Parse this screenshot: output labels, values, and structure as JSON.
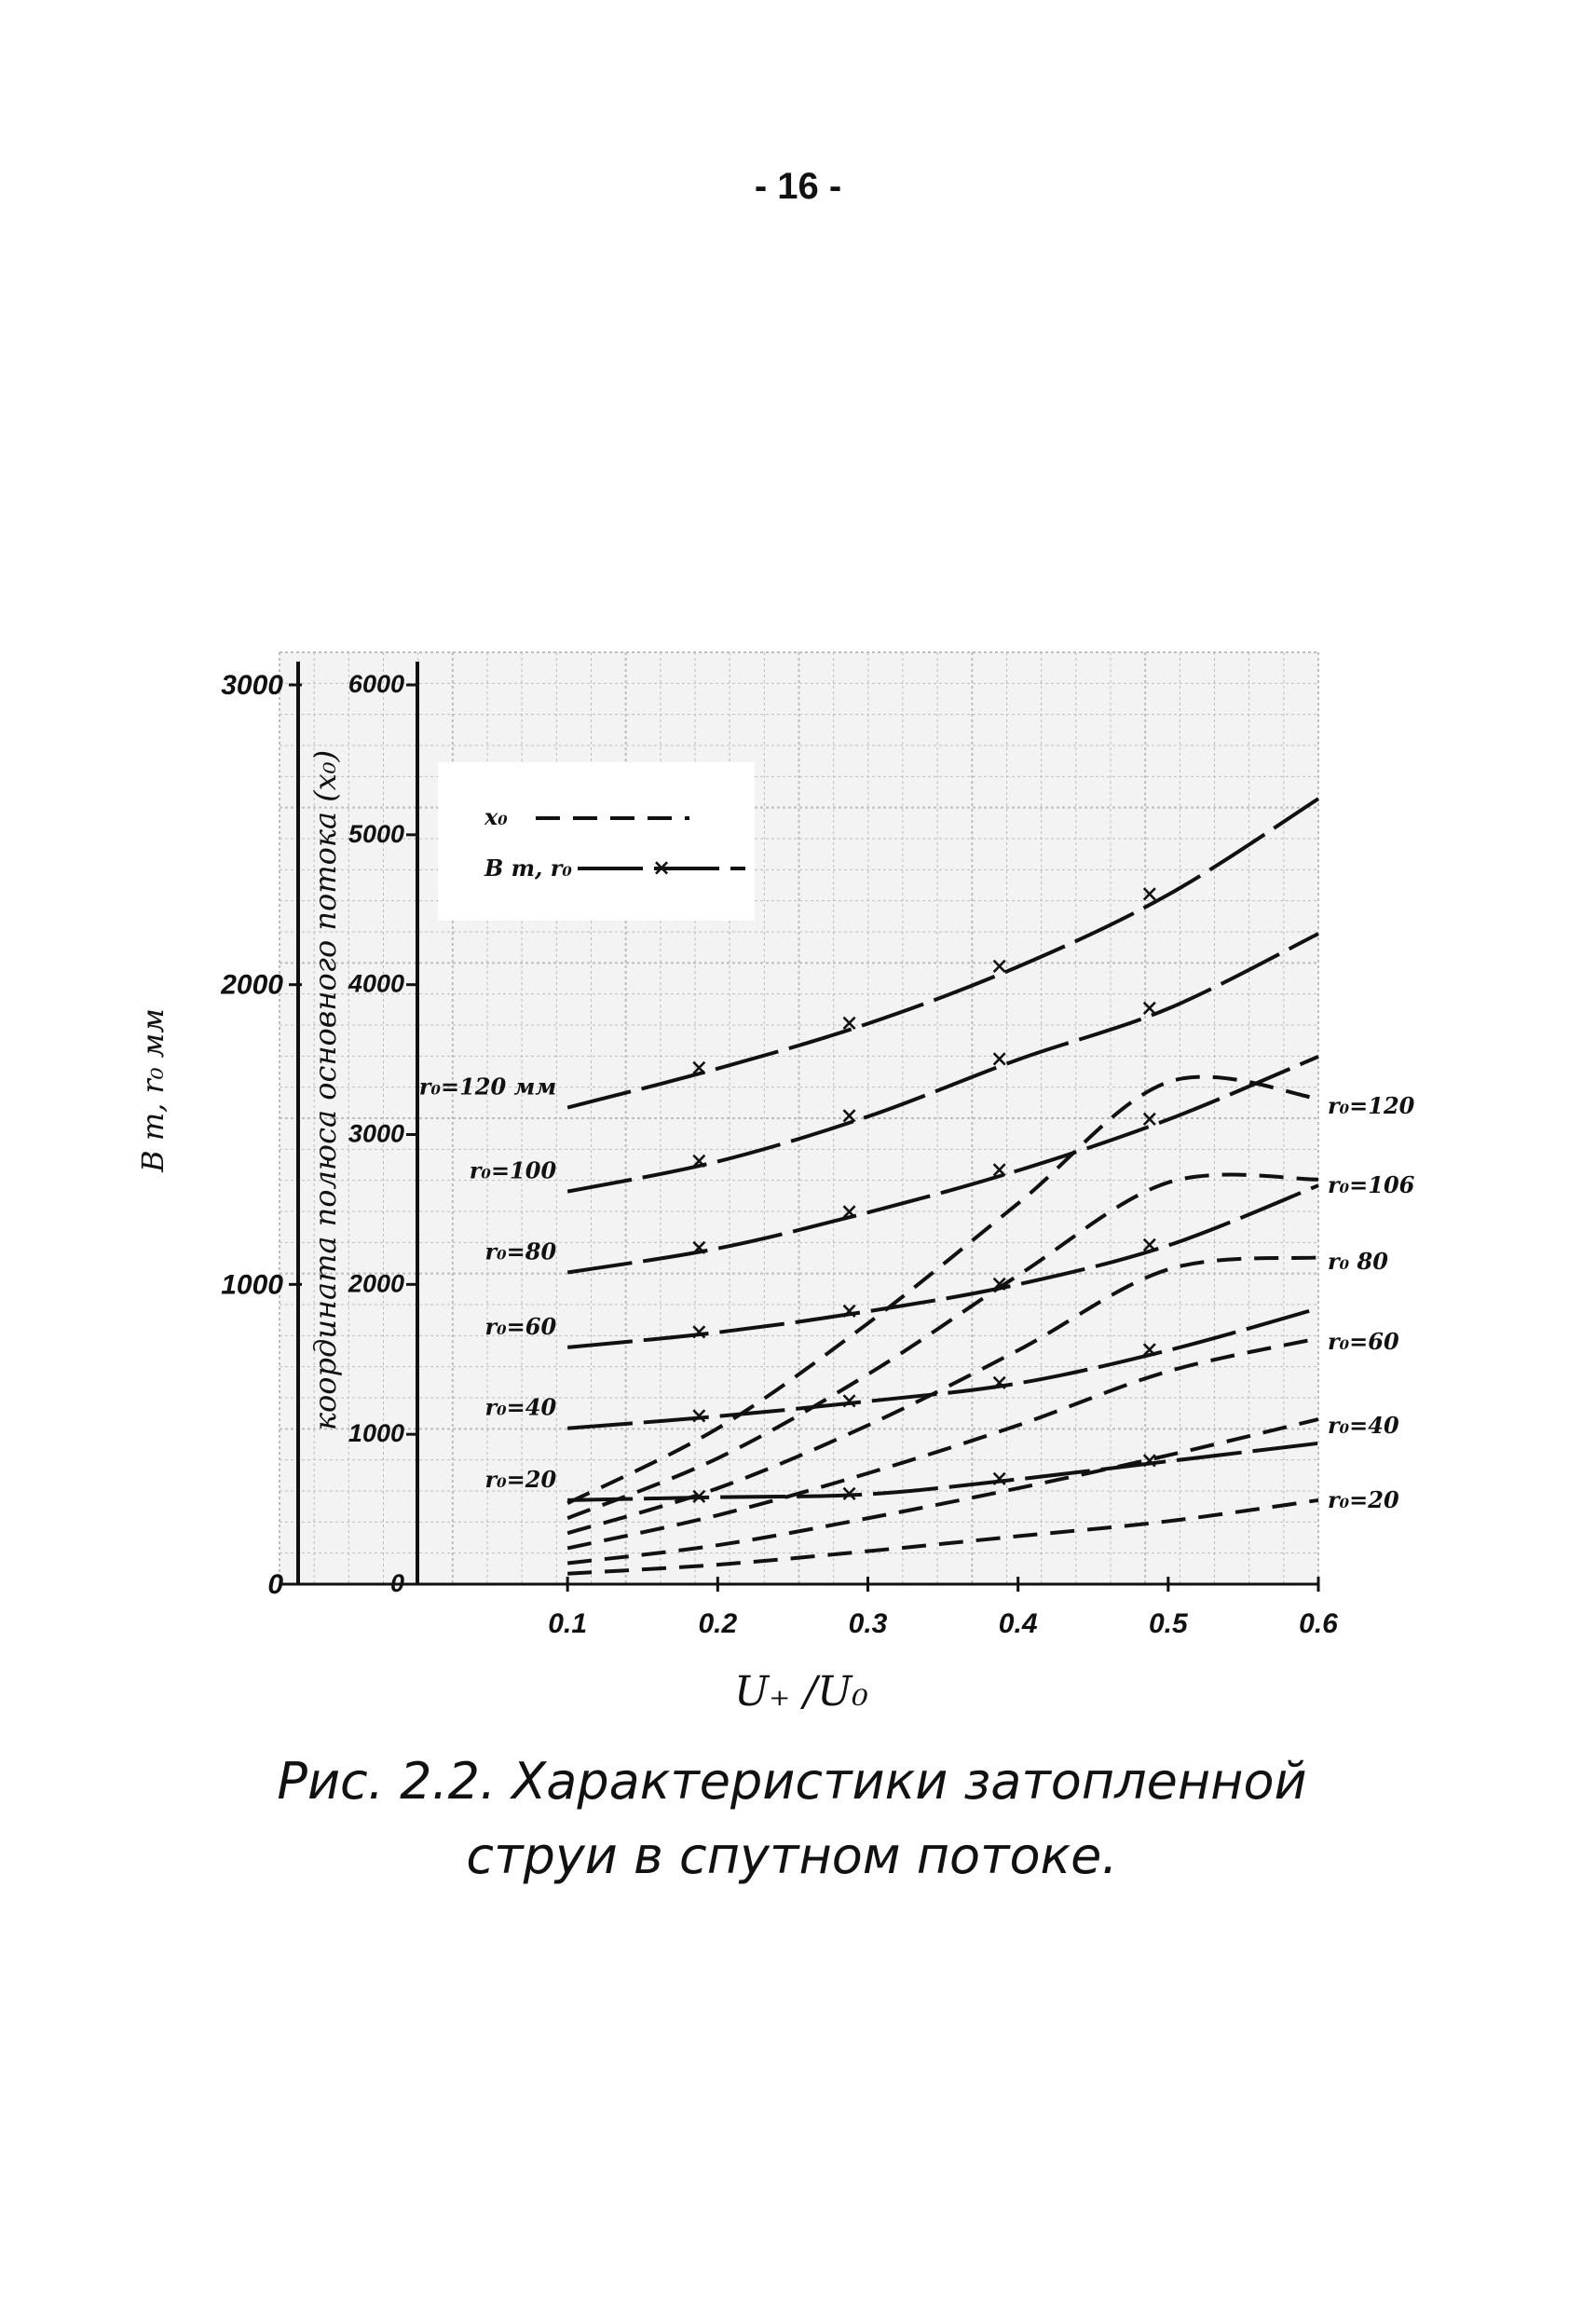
{
  "page_number": "- 16 -",
  "caption": {
    "line1": "Рис. 2.2. Характеристики затопленной",
    "line2": "струи в спутном потоке."
  },
  "chart_data": {
    "type": "line",
    "xlabel": "U₊ /U₀",
    "ylabel_left": "B m, r₀ мм",
    "ylabel_right": "координата полюса основного потока (x₀)",
    "xlim": [
      0,
      0.6
    ],
    "ylim_left": [
      0,
      3000
    ],
    "ylim_right": [
      0,
      6000
    ],
    "x_ticks": [
      0.1,
      0.2,
      0.3,
      0.4,
      0.5,
      0.6
    ],
    "x_tick_labels": [
      "0.1",
      "0.2",
      "0.3",
      "0.4",
      "0.5",
      "0.6"
    ],
    "y_left_ticks": [
      0,
      1000,
      2000,
      3000
    ],
    "y_left_tick_labels": [
      "0",
      "1000",
      "2000",
      "3000"
    ],
    "y_right_ticks": [
      0,
      1000,
      2000,
      3000,
      4000,
      5000,
      6000
    ],
    "y_right_tick_labels": [
      "0",
      "1000",
      "2000",
      "3000",
      "4000",
      "5000",
      "6000"
    ],
    "grid": true,
    "legend": {
      "position": "top-left",
      "entries": [
        {
          "label": "x₀",
          "style": "dashed"
        },
        {
          "label": "B m, r₀",
          "style": "dash-dot-x"
        }
      ]
    },
    "series_B": [
      {
        "label": "r₀=120 мм",
        "x": [
          0.1,
          0.2,
          0.3,
          0.4,
          0.5,
          0.6
        ],
        "y": [
          1590,
          1720,
          1870,
          2060,
          2300,
          2620
        ]
      },
      {
        "label": "r₀=100",
        "x": [
          0.1,
          0.2,
          0.3,
          0.4,
          0.5,
          0.6
        ],
        "y": [
          1310,
          1410,
          1560,
          1750,
          1920,
          2170
        ]
      },
      {
        "label": "r₀=80",
        "x": [
          0.1,
          0.2,
          0.3,
          0.4,
          0.5,
          0.6
        ],
        "y": [
          1040,
          1120,
          1240,
          1380,
          1550,
          1760
        ]
      },
      {
        "label": "r₀=60",
        "x": [
          0.1,
          0.2,
          0.3,
          0.4,
          0.5,
          0.6
        ],
        "y": [
          790,
          840,
          910,
          1000,
          1130,
          1330
        ]
      },
      {
        "label": "r₀=40",
        "x": [
          0.1,
          0.2,
          0.3,
          0.4,
          0.5,
          0.6
        ],
        "y": [
          520,
          560,
          610,
          670,
          780,
          920
        ]
      },
      {
        "label": "r₀=20",
        "x": [
          0.1,
          0.2,
          0.3,
          0.4,
          0.5,
          0.6
        ],
        "y": [
          280,
          290,
          300,
          350,
          410,
          470
        ]
      }
    ],
    "series_x0": [
      {
        "label": "r₀=120",
        "x": [
          0.1,
          0.2,
          0.3,
          0.4,
          0.5,
          0.6
        ],
        "y": [
          540,
          1040,
          1740,
          2540,
          3350,
          3240
        ]
      },
      {
        "label": "r₀=106",
        "x": [
          0.1,
          0.2,
          0.3,
          0.4,
          0.5,
          0.6
        ],
        "y": [
          440,
          840,
          1400,
          2060,
          2680,
          2700
        ]
      },
      {
        "label": "r₀=80",
        "x": [
          0.1,
          0.2,
          0.3,
          0.4,
          0.5,
          0.6
        ],
        "y": [
          340,
          640,
          1060,
          1560,
          2100,
          2180
        ]
      },
      {
        "label": "r₀=60",
        "x": [
          0.1,
          0.2,
          0.3,
          0.4,
          0.5,
          0.6
        ],
        "y": [
          240,
          460,
          740,
          1060,
          1420,
          1640
        ]
      },
      {
        "label": "r₀=40",
        "x": [
          0.1,
          0.2,
          0.3,
          0.4,
          0.5,
          0.6
        ],
        "y": [
          140,
          260,
          440,
          640,
          860,
          1100
        ]
      },
      {
        "label": "r₀=20",
        "x": [
          0.1,
          0.2,
          0.3,
          0.4,
          0.5,
          0.6
        ],
        "y": [
          70,
          130,
          220,
          320,
          420,
          560
        ]
      }
    ],
    "left_labels": [
      "r₀=120 мм",
      "r₀=100",
      "r₀=80",
      "r₀=60",
      "r₀=40",
      "r₀=20"
    ],
    "right_labels": [
      "r₀=120",
      "r₀=106",
      "r₀ 80",
      "r₀=60",
      "r₀=40",
      "r₀=20"
    ]
  }
}
